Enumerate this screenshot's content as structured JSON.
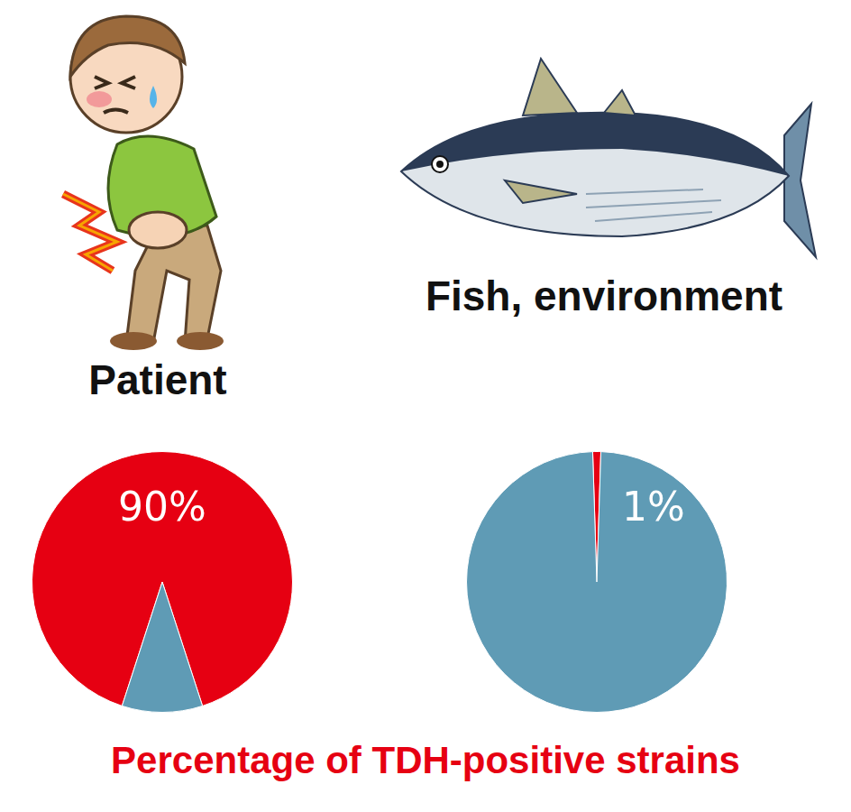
{
  "chart_data": [
    {
      "type": "pie",
      "title": "Patient",
      "categories": [
        null,
        null
      ],
      "values": [
        90,
        10
      ],
      "value_labels": [
        "90%",
        null
      ],
      "colors": [
        "#e60012",
        "#5f9bb5"
      ],
      "data_labels": true
    },
    {
      "type": "pie",
      "title": "Fish, environment",
      "categories": [
        null,
        null
      ],
      "values": [
        1,
        99
      ],
      "value_labels": [
        "1%",
        null
      ],
      "colors": [
        "#e60012",
        "#5f9bb5"
      ],
      "data_labels": true
    }
  ],
  "caption": "Percentage of TDH-positive strains"
}
